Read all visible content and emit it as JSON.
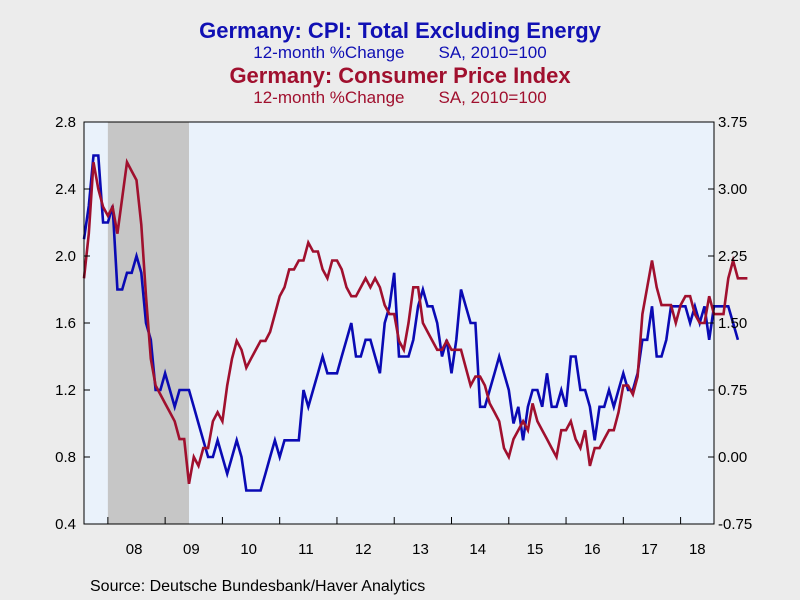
{
  "titles": {
    "series1_title": "Germany: CPI: Total Excluding Energy",
    "series1_sub_left": "12-month %Change",
    "series1_sub_right": "SA, 2010=100",
    "series2_title": "Germany: Consumer Price Index",
    "series2_sub_left": "12-month %Change",
    "series2_sub_right": "SA, 2010=100"
  },
  "source": "Source:  Deutsche Bundesbank/Haver Analytics",
  "colors": {
    "series1": "#0a0ab4",
    "series2": "#a0102e",
    "plot_bg": "#eaf2fb",
    "recession": "#c6c6c6"
  },
  "chart_data": {
    "type": "line",
    "x_start": "2007-08",
    "x_end": "2018-08",
    "x_ticks": [
      "08",
      "09",
      "10",
      "11",
      "12",
      "13",
      "14",
      "15",
      "16",
      "17",
      "18"
    ],
    "left_axis": {
      "ticks": [
        "2.8",
        "2.4",
        "2.0",
        "1.6",
        "1.2",
        "0.8",
        "0.4"
      ],
      "range": [
        0.4,
        2.8
      ]
    },
    "right_axis": {
      "ticks": [
        "3.75",
        "3.00",
        "2.25",
        "1.50",
        "0.75",
        "0.00",
        "-0.75"
      ],
      "range": [
        -0.75,
        3.75
      ]
    },
    "shaded_period": {
      "start": "2008-01",
      "end": "2009-06"
    },
    "series": [
      {
        "name": "Germany: CPI: Total Excluding Energy",
        "axis": "left",
        "values": [
          2.1,
          2.3,
          2.6,
          2.6,
          2.2,
          2.2,
          2.3,
          1.8,
          1.8,
          1.9,
          1.9,
          2.0,
          1.9,
          1.6,
          1.5,
          1.2,
          1.2,
          1.3,
          1.2,
          1.1,
          1.2,
          1.2,
          1.2,
          1.1,
          1.0,
          0.9,
          0.8,
          0.8,
          0.9,
          0.8,
          0.7,
          0.8,
          0.9,
          0.8,
          0.6,
          0.6,
          0.6,
          0.6,
          0.7,
          0.8,
          0.9,
          0.8,
          0.9,
          0.9,
          0.9,
          0.9,
          1.2,
          1.1,
          1.2,
          1.3,
          1.4,
          1.3,
          1.3,
          1.3,
          1.4,
          1.5,
          1.6,
          1.4,
          1.4,
          1.5,
          1.5,
          1.4,
          1.3,
          1.6,
          1.7,
          1.9,
          1.4,
          1.4,
          1.4,
          1.5,
          1.7,
          1.8,
          1.7,
          1.7,
          1.6,
          1.4,
          1.5,
          1.3,
          1.5,
          1.8,
          1.7,
          1.6,
          1.6,
          1.1,
          1.1,
          1.2,
          1.3,
          1.4,
          1.3,
          1.2,
          1.0,
          1.1,
          0.9,
          1.1,
          1.2,
          1.2,
          1.1,
          1.3,
          1.1,
          1.1,
          1.2,
          1.1,
          1.4,
          1.4,
          1.2,
          1.2,
          1.1,
          0.9,
          1.1,
          1.1,
          1.2,
          1.1,
          1.2,
          1.3,
          1.2,
          1.2,
          1.3,
          1.5,
          1.5,
          1.7,
          1.4,
          1.4,
          1.5,
          1.7,
          1.7,
          1.7,
          1.7,
          1.6,
          1.7,
          1.6,
          1.7,
          1.5,
          1.7,
          1.7,
          1.7,
          1.7,
          1.6,
          1.5
        ],
        "color_key": "series1"
      },
      {
        "name": "Germany: Consumer Price Index",
        "axis": "right",
        "values": [
          2.0,
          2.5,
          3.3,
          3.0,
          2.8,
          2.7,
          2.8,
          2.5,
          2.9,
          3.3,
          3.2,
          3.1,
          2.6,
          1.8,
          1.1,
          0.8,
          0.7,
          0.6,
          0.5,
          0.4,
          0.2,
          0.2,
          -0.3,
          0.0,
          -0.1,
          0.1,
          0.1,
          0.4,
          0.5,
          0.4,
          0.8,
          1.1,
          1.3,
          1.2,
          1.0,
          1.1,
          1.2,
          1.3,
          1.3,
          1.4,
          1.6,
          1.8,
          1.9,
          2.1,
          2.1,
          2.2,
          2.2,
          2.4,
          2.3,
          2.3,
          2.1,
          2.0,
          2.2,
          2.2,
          2.1,
          1.9,
          1.8,
          1.8,
          1.9,
          2.0,
          1.9,
          2.0,
          1.9,
          1.7,
          1.6,
          1.6,
          1.3,
          1.2,
          1.5,
          1.9,
          1.9,
          1.5,
          1.4,
          1.3,
          1.2,
          1.2,
          1.3,
          1.2,
          1.2,
          1.2,
          1.0,
          0.8,
          0.9,
          0.9,
          0.8,
          0.6,
          0.5,
          0.4,
          0.1,
          0.0,
          0.2,
          0.3,
          0.4,
          0.3,
          0.6,
          0.4,
          0.3,
          0.2,
          0.1,
          0.0,
          0.3,
          0.3,
          0.4,
          0.2,
          0.1,
          0.3,
          -0.1,
          0.1,
          0.1,
          0.2,
          0.3,
          0.3,
          0.5,
          0.8,
          0.8,
          0.7,
          0.9,
          1.6,
          1.9,
          2.2,
          1.9,
          1.7,
          1.7,
          1.7,
          1.5,
          1.7,
          1.8,
          1.8,
          1.6,
          1.5,
          1.5,
          1.8,
          1.6,
          1.6,
          1.6,
          2.0,
          2.2,
          2.0,
          2.0,
          2.0
        ],
        "color_key": "series2"
      }
    ]
  }
}
